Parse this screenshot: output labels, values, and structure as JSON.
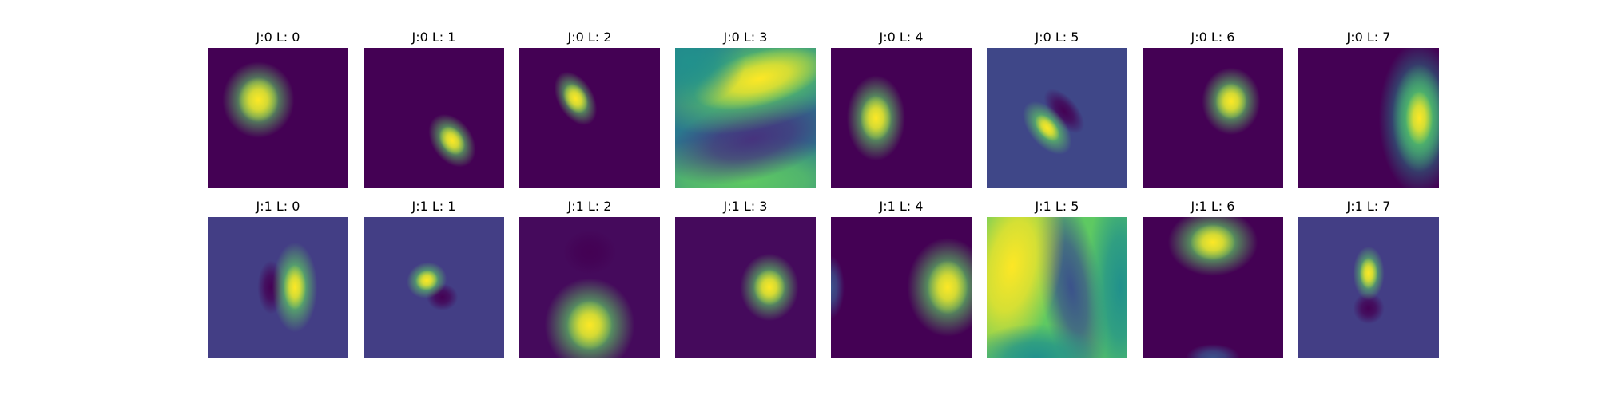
{
  "panels": [
    {
      "title": "J:0 L: 0"
    },
    {
      "title": "J:0 L: 1"
    },
    {
      "title": "J:0 L: 2"
    },
    {
      "title": "J:0 L: 3"
    },
    {
      "title": "J:0 L: 4"
    },
    {
      "title": "J:0 L: 5"
    },
    {
      "title": "J:0 L: 6"
    },
    {
      "title": "J:0 L: 7"
    },
    {
      "title": "J:1 L: 0"
    },
    {
      "title": "J:1 L: 1"
    },
    {
      "title": "J:1 L: 2"
    },
    {
      "title": "J:1 L: 3"
    },
    {
      "title": "J:1 L: 4"
    },
    {
      "title": "J:1 L: 5"
    },
    {
      "title": "J:1 L: 6"
    },
    {
      "title": "J:1 L: 7"
    }
  ]
}
